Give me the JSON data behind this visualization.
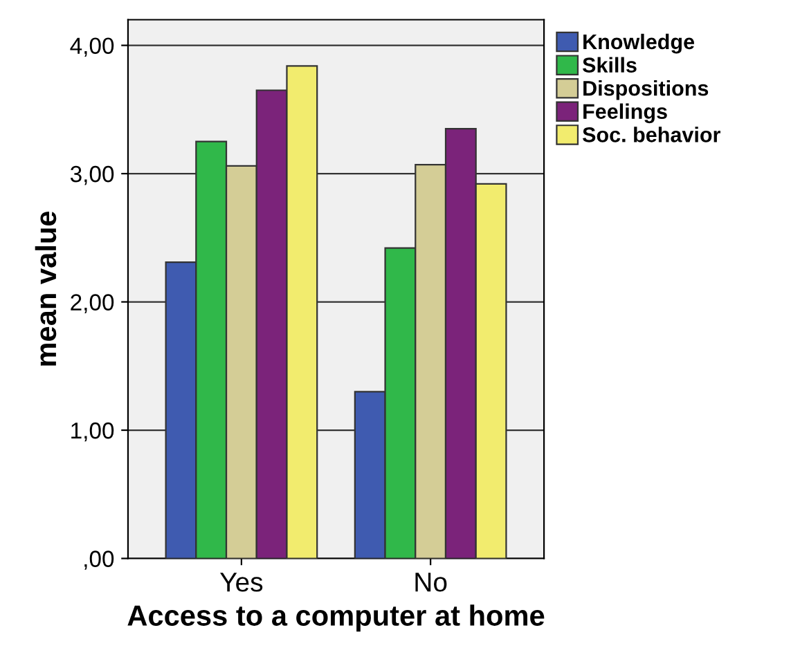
{
  "chart_data": {
    "type": "bar",
    "xlabel": "Access to a computer at home",
    "ylabel": "mean value",
    "categories": [
      "Yes",
      "No"
    ],
    "series": [
      {
        "name": "Knowledge",
        "color": "#3f5bb0",
        "values": [
          2.31,
          1.3
        ]
      },
      {
        "name": "Skills",
        "color": "#30b84a",
        "values": [
          3.25,
          2.42
        ]
      },
      {
        "name": "Dispositions",
        "color": "#d4cd96",
        "values": [
          3.06,
          3.07
        ]
      },
      {
        "name": "Feelings",
        "color": "#7b237a",
        "values": [
          3.65,
          3.35
        ]
      },
      {
        "name": "Soc. behavior",
        "color": "#f2ec6e",
        "values": [
          3.84,
          2.92
        ]
      }
    ],
    "ylim": [
      0,
      4.2
    ],
    "yticks": [
      {
        "value": 0,
        "label": ",00"
      },
      {
        "value": 1,
        "label": "1,00"
      },
      {
        "value": 2,
        "label": "2,00"
      },
      {
        "value": 3,
        "label": "3,00"
      },
      {
        "value": 4,
        "label": "4,00"
      }
    ],
    "grid": "y",
    "legend": "top right"
  }
}
